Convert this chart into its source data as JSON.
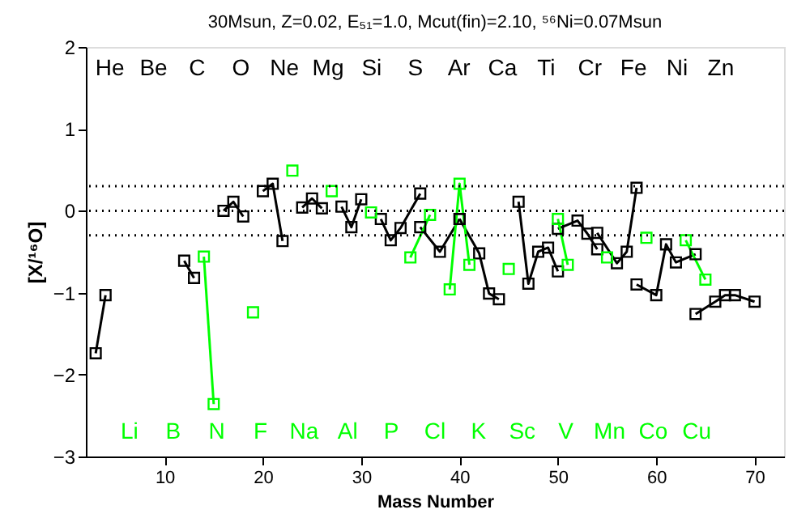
{
  "chart_data": {
    "type": "line",
    "title": "30Msun, Z=0.02, E₅₁=1.0, Mcut(fin)=2.10, ⁵⁶Ni=0.07Msun",
    "xlabel": "Mass Number",
    "ylabel": "[X/¹⁶O]",
    "xlim": [
      2,
      73
    ],
    "ylim": [
      -3,
      2
    ],
    "xticks": [
      10,
      20,
      30,
      40,
      50,
      60,
      70
    ],
    "yticks": [
      -3,
      -2,
      -1,
      0,
      1,
      2
    ],
    "grid": false,
    "marker": "square",
    "line_style": "solid",
    "ref_lines": [
      {
        "axis": "y",
        "value": 0.3,
        "color": "#000000",
        "line_style": "dotted"
      },
      {
        "axis": "y",
        "value": 0,
        "color": "#000000",
        "line_style": "dotted"
      },
      {
        "axis": "y",
        "value": -0.3,
        "color": "#000000",
        "line_style": "dotted"
      }
    ],
    "series": [
      {
        "color": "#000000",
        "x": [
          3,
          4
        ],
        "values": [
          -1.74,
          -1.03
        ]
      },
      {
        "color": "#000000",
        "x": [
          12,
          13
        ],
        "values": [
          -0.61,
          -0.82
        ]
      },
      {
        "color": "#000000",
        "x": [
          16,
          17,
          18
        ],
        "values": [
          0,
          0.11,
          -0.07
        ]
      },
      {
        "color": "#000000",
        "x": [
          20,
          21,
          22
        ],
        "values": [
          0.24,
          0.33,
          -0.37
        ]
      },
      {
        "color": "#000000",
        "x": [
          24,
          25,
          26
        ],
        "values": [
          0.04,
          0.15,
          0.03
        ]
      },
      {
        "color": "#000000",
        "x": [
          28,
          29,
          30
        ],
        "values": [
          0.05,
          -0.2,
          0.14
        ]
      },
      {
        "color": "#000000",
        "x": [
          32,
          33,
          34,
          36
        ],
        "values": [
          -0.1,
          -0.36,
          -0.21,
          0.21
        ]
      },
      {
        "color": "#000000",
        "x": [
          36,
          38,
          40
        ],
        "values": [
          -0.2,
          -0.5,
          -0.1
        ]
      },
      {
        "color": "#000000",
        "x": [
          40,
          42,
          43,
          44
        ],
        "values": [
          -0.1,
          -0.52,
          -1.01,
          -1.08
        ]
      },
      {
        "color": "#000000",
        "x": [
          46,
          47,
          48,
          49,
          50
        ],
        "values": [
          0.11,
          -0.89,
          -0.5,
          -0.45,
          -0.74
        ]
      },
      {
        "color": "#000000",
        "x": [
          50,
          52,
          53,
          54
        ],
        "values": [
          -0.22,
          -0.12,
          -0.28,
          -0.47
        ]
      },
      {
        "color": "#000000",
        "x": [
          54,
          56,
          57,
          58
        ],
        "values": [
          -0.27,
          -0.64,
          -0.5,
          0.28
        ]
      },
      {
        "color": "#000000",
        "x": [
          58,
          60,
          61,
          62,
          64
        ],
        "values": [
          -0.9,
          -1.03,
          -0.41,
          -0.63,
          -0.53
        ]
      },
      {
        "color": "#000000",
        "x": [
          64,
          66,
          67,
          68,
          70
        ],
        "values": [
          -1.26,
          -1.11,
          -1.03,
          -1.03,
          -1.11
        ]
      },
      {
        "color": "#00ff00",
        "x": [
          14,
          15
        ],
        "values": [
          -0.56,
          -2.36
        ]
      },
      {
        "color": "#00ff00",
        "x": [
          19
        ],
        "values": [
          -1.24
        ]
      },
      {
        "color": "#00ff00",
        "x": [
          23
        ],
        "values": [
          0.49
        ]
      },
      {
        "color": "#00ff00",
        "x": [
          27
        ],
        "values": [
          0.24
        ]
      },
      {
        "color": "#00ff00",
        "x": [
          31
        ],
        "values": [
          -0.02
        ]
      },
      {
        "color": "#00ff00",
        "x": [
          35,
          37
        ],
        "values": [
          -0.57,
          -0.05
        ]
      },
      {
        "color": "#00ff00",
        "x": [
          39,
          40,
          41
        ],
        "values": [
          -0.96,
          0.33,
          -0.66
        ]
      },
      {
        "color": "#00ff00",
        "x": [
          45
        ],
        "values": [
          -0.71
        ]
      },
      {
        "color": "#00ff00",
        "x": [
          50,
          51
        ],
        "values": [
          -0.1,
          -0.66
        ]
      },
      {
        "color": "#00ff00",
        "x": [
          55
        ],
        "values": [
          -0.57
        ]
      },
      {
        "color": "#00ff00",
        "x": [
          59
        ],
        "values": [
          -0.33
        ]
      },
      {
        "color": "#00ff00",
        "x": [
          63,
          65
        ],
        "values": [
          -0.36,
          -0.84
        ]
      }
    ],
    "annotations": [
      "He",
      "Be",
      "C",
      "O",
      "Ne",
      "Mg",
      "Si",
      "S",
      "Ar",
      "Ca",
      "Ti",
      "Cr",
      "Fe",
      "Ni",
      "Zn",
      "Li",
      "B",
      "N",
      "F",
      "Na",
      "Al",
      "P",
      "Cl",
      "K",
      "Sc",
      "V",
      "Mn",
      "Co",
      "Cu"
    ]
  }
}
